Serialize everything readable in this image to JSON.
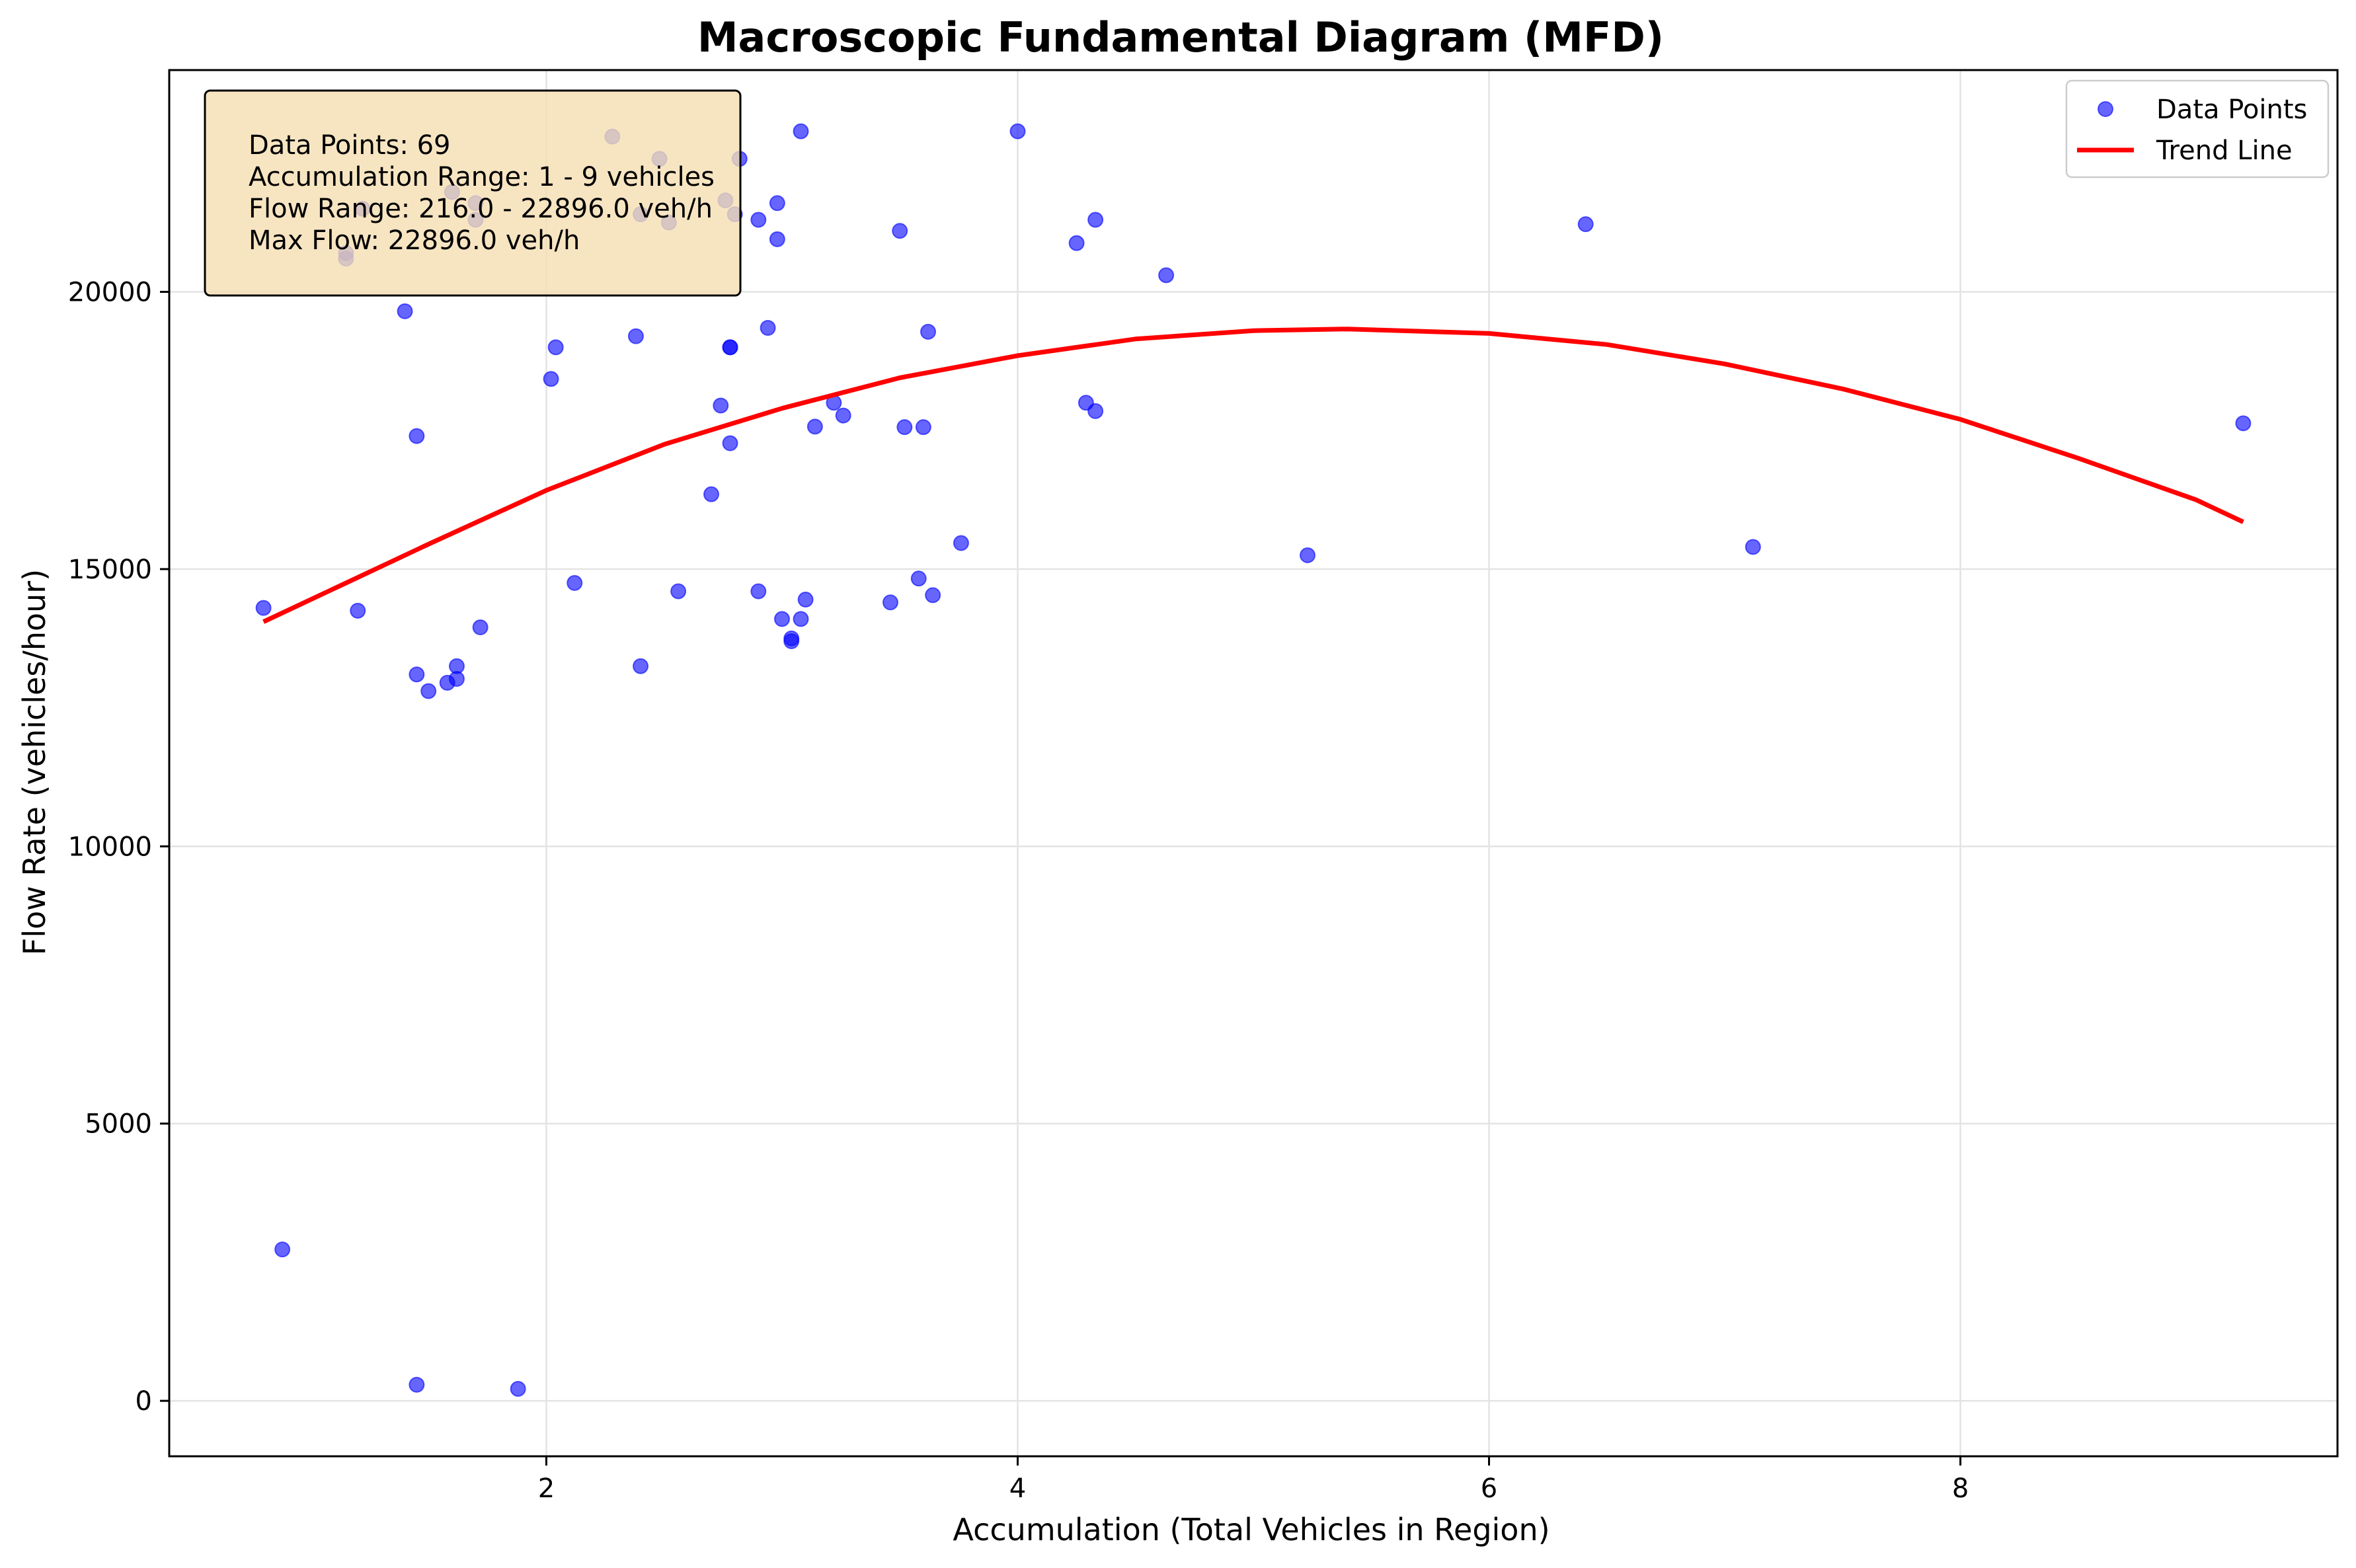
{
  "chart_data": {
    "type": "scatter",
    "title": "Macroscopic Fundamental Diagram (MFD)",
    "xlabel": "Accumulation (Total Vehicles in Region)",
    "ylabel": "Flow Rate (vehicles/hour)",
    "xlim": [
      0.4,
      9.6
    ],
    "ylim": [
      -1000,
      24000
    ],
    "x_ticks": [
      2,
      4,
      6,
      8
    ],
    "y_ticks": [
      0,
      5000,
      10000,
      15000,
      20000
    ],
    "x_tick_labels": [
      "2",
      "4",
      "6",
      "8"
    ],
    "y_tick_labels": [
      "0",
      "5000",
      "10000",
      "15000",
      "20000"
    ],
    "grid": true,
    "legend_position": "top-right",
    "legend": [
      {
        "label": "Data Points",
        "kind": "marker",
        "color": "#0000ff"
      },
      {
        "label": "Trend Line",
        "kind": "line",
        "color": "#ff0000"
      }
    ],
    "annotation": {
      "lines": [
        "Data Points: 69",
        "Accumulation Range: 1 - 9 vehicles",
        "Flow Range: 216.0 - 22896.0 veh/h",
        "Max Flow: 22896.0 veh/h"
      ],
      "position": "top-left",
      "background": "#f5deb3"
    },
    "series": [
      {
        "name": "Data Points",
        "type": "scatter",
        "color": "#0000ff",
        "alpha": 0.6,
        "points": [
          [
            0.8,
            14300
          ],
          [
            0.88,
            2730
          ],
          [
            1.15,
            20700
          ],
          [
            1.15,
            20600
          ],
          [
            1.2,
            14250
          ],
          [
            1.22,
            21500
          ],
          [
            1.4,
            19650
          ],
          [
            1.45,
            17400
          ],
          [
            1.45,
            13100
          ],
          [
            1.45,
            290
          ],
          [
            1.5,
            12800
          ],
          [
            1.58,
            12950
          ],
          [
            1.6,
            21800
          ],
          [
            1.62,
            13250
          ],
          [
            1.62,
            13020
          ],
          [
            1.7,
            21300
          ],
          [
            1.72,
            13950
          ],
          [
            1.88,
            216
          ],
          [
            2.02,
            18430
          ],
          [
            2.04,
            19000
          ],
          [
            2.12,
            14750
          ],
          [
            2.28,
            22800
          ],
          [
            2.38,
            19200
          ],
          [
            2.4,
            13250
          ],
          [
            2.4,
            21400
          ],
          [
            2.48,
            22400
          ],
          [
            2.52,
            21250
          ],
          [
            2.56,
            14600
          ],
          [
            2.7,
            16350
          ],
          [
            2.74,
            17950
          ],
          [
            2.76,
            21650
          ],
          [
            2.78,
            17270
          ],
          [
            2.78,
            19000
          ],
          [
            2.78,
            19000
          ],
          [
            2.8,
            21400
          ],
          [
            2.82,
            22400
          ],
          [
            2.9,
            14600
          ],
          [
            2.94,
            19350
          ],
          [
            2.98,
            21600
          ],
          [
            2.98,
            20950
          ],
          [
            3.0,
            14100
          ],
          [
            3.04,
            13700
          ],
          [
            3.04,
            13750
          ],
          [
            3.08,
            14100
          ],
          [
            3.08,
            22896
          ],
          [
            3.1,
            14450
          ],
          [
            3.14,
            17570
          ],
          [
            3.22,
            18000
          ],
          [
            3.26,
            17770
          ],
          [
            3.46,
            14400
          ],
          [
            3.5,
            21100
          ],
          [
            3.52,
            17560
          ],
          [
            3.58,
            14830
          ],
          [
            3.6,
            17560
          ],
          [
            3.62,
            19280
          ],
          [
            3.64,
            14530
          ],
          [
            3.76,
            15470
          ],
          [
            4.0,
            22896
          ],
          [
            4.25,
            20880
          ],
          [
            4.29,
            18000
          ],
          [
            4.33,
            17850
          ],
          [
            4.33,
            21300
          ],
          [
            4.63,
            20300
          ],
          [
            5.23,
            15250
          ],
          [
            6.41,
            21220
          ],
          [
            7.12,
            15400
          ],
          [
            9.2,
            17630
          ],
          [
            2.9,
            21300
          ],
          [
            1.7,
            21600
          ]
        ]
      },
      {
        "name": "Trend Line",
        "type": "line",
        "color": "#ff0000",
        "points": [
          [
            0.8,
            14050
          ],
          [
            1.5,
            15450
          ],
          [
            2.0,
            16420
          ],
          [
            2.5,
            17250
          ],
          [
            3.0,
            17900
          ],
          [
            3.5,
            18450
          ],
          [
            4.0,
            18850
          ],
          [
            4.5,
            19150
          ],
          [
            5.0,
            19300
          ],
          [
            5.4,
            19330
          ],
          [
            6.0,
            19250
          ],
          [
            6.5,
            19050
          ],
          [
            7.0,
            18700
          ],
          [
            7.5,
            18250
          ],
          [
            8.0,
            17700
          ],
          [
            8.5,
            17000
          ],
          [
            9.0,
            16250
          ],
          [
            9.2,
            15850
          ]
        ]
      }
    ]
  }
}
